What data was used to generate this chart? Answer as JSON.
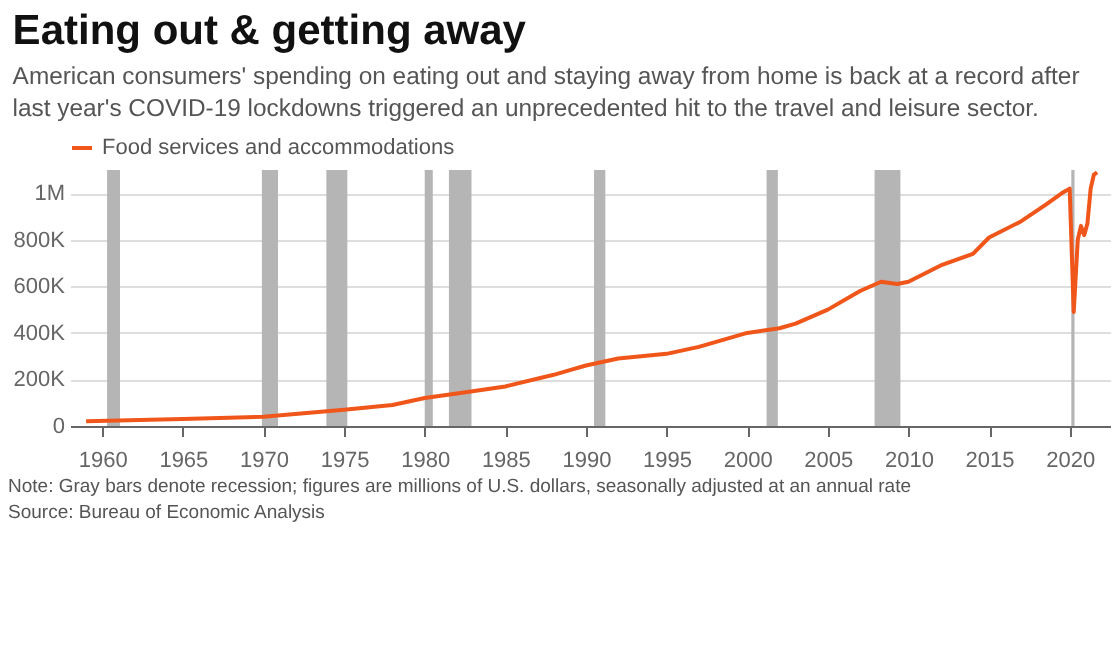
{
  "chart_data": {
    "type": "line",
    "title": "Eating out & getting away",
    "subtitle": "American consumers' spending on eating out and staying away from home is back at a record after last year's COVID-19 lockdowns triggered an unprecedented hit to the travel and leisure sector.",
    "x": [
      1959,
      1965,
      1970,
      1975,
      1978,
      1980,
      1982,
      1985,
      1988,
      1989,
      1990,
      1992,
      1995,
      1997,
      2000,
      2002,
      2003,
      2005,
      2007,
      2008.3,
      2009.3,
      2010,
      2012,
      2014,
      2015,
      2017,
      2018.5,
      2019.5,
      2020,
      2020.25,
      2020.5,
      2020.7,
      2020.9,
      2021.1,
      2021.3,
      2021.5,
      2021.7
    ],
    "series": [
      {
        "name": "Food services and accommodations",
        "color": "#f0561a",
        "values": [
          20000,
          30000,
          40000,
          70000,
          90000,
          120000,
          140000,
          170000,
          220000,
          240000,
          260000,
          290000,
          310000,
          340000,
          400000,
          420000,
          440000,
          500000,
          580000,
          620000,
          610000,
          620000,
          690000,
          740000,
          810000,
          880000,
          950000,
          1000000,
          1020000,
          490000,
          800000,
          860000,
          820000,
          870000,
          1020000,
          1080000,
          1090000
        ]
      }
    ],
    "xlim": [
      1958,
      2022.5
    ],
    "xticks": [
      1960,
      1965,
      1970,
      1975,
      1980,
      1985,
      1990,
      1995,
      2000,
      2005,
      2010,
      2015,
      2020
    ],
    "ylim": [
      0,
      1100000
    ],
    "yticks": [
      0,
      {
        "value": 200000,
        "label": "200K"
      },
      {
        "value": 400000,
        "label": "400K"
      },
      {
        "value": 600000,
        "label": "600K"
      },
      {
        "value": 800000,
        "label": "800K"
      },
      {
        "value": 1000000,
        "label": "1M"
      }
    ],
    "bands": [
      {
        "axis": "x",
        "from": 1960.3,
        "to": 1961.1,
        "color": "#b5b5b5"
      },
      {
        "axis": "x",
        "from": 1969.9,
        "to": 1970.9,
        "color": "#b5b5b5"
      },
      {
        "axis": "x",
        "from": 1973.9,
        "to": 1975.2,
        "color": "#b5b5b5"
      },
      {
        "axis": "x",
        "from": 1980.0,
        "to": 1980.5,
        "color": "#b5b5b5"
      },
      {
        "axis": "x",
        "from": 1981.5,
        "to": 1982.9,
        "color": "#b5b5b5"
      },
      {
        "axis": "x",
        "from": 1990.5,
        "to": 1991.2,
        "color": "#b5b5b5"
      },
      {
        "axis": "x",
        "from": 2001.2,
        "to": 2001.9,
        "color": "#b5b5b5"
      },
      {
        "axis": "x",
        "from": 2007.9,
        "to": 2009.5,
        "color": "#b5b5b5"
      },
      {
        "axis": "x",
        "from": 2020.1,
        "to": 2020.3,
        "color": "#b5b5b5"
      }
    ],
    "grid": "y",
    "legend": "top left",
    "marker": "none",
    "line_style": "solid",
    "annotations": [
      "Note: Gray bars denote recession; figures are millions of U.S. dollars, seasonally adjusted at an annual rate",
      "Source: Bureau of Economic Analysis"
    ]
  }
}
